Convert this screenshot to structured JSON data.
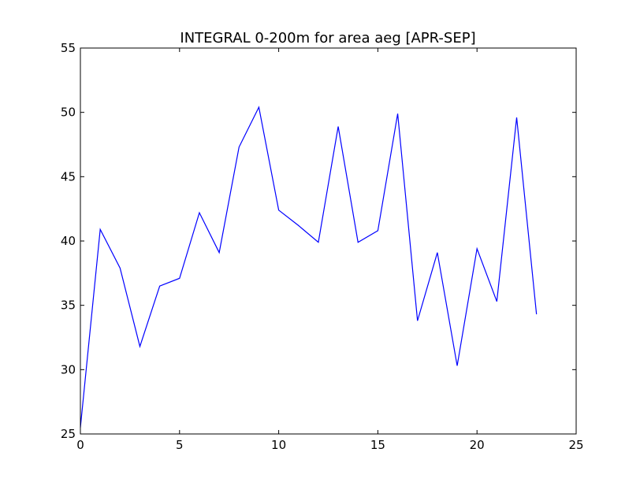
{
  "chart_data": {
    "type": "line",
    "title": "INTEGRAL 0-200m for area aeg [APR-SEP]",
    "xlabel": "",
    "ylabel": "",
    "xlim": [
      0,
      25
    ],
    "ylim": [
      25,
      55
    ],
    "xticks": [
      "0",
      "5",
      "10",
      "15",
      "20",
      "25"
    ],
    "yticks": [
      "25",
      "30",
      "35",
      "40",
      "45",
      "50",
      "55"
    ],
    "grid": false,
    "legend": "none",
    "series": [
      {
        "color": "#0000ff",
        "x": [
          0,
          1,
          2,
          3,
          4,
          5,
          6,
          7,
          8,
          9,
          10,
          11,
          12,
          13,
          14,
          15,
          16,
          17,
          18,
          19,
          20,
          21,
          22,
          23
        ],
        "y": [
          25.5,
          40.9,
          37.9,
          31.8,
          36.5,
          37.1,
          42.2,
          39.1,
          47.3,
          50.4,
          42.4,
          41.2,
          39.9,
          48.9,
          39.9,
          40.8,
          49.9,
          33.8,
          39.1,
          30.3,
          39.4,
          35.3,
          49.6,
          34.3
        ]
      }
    ]
  }
}
